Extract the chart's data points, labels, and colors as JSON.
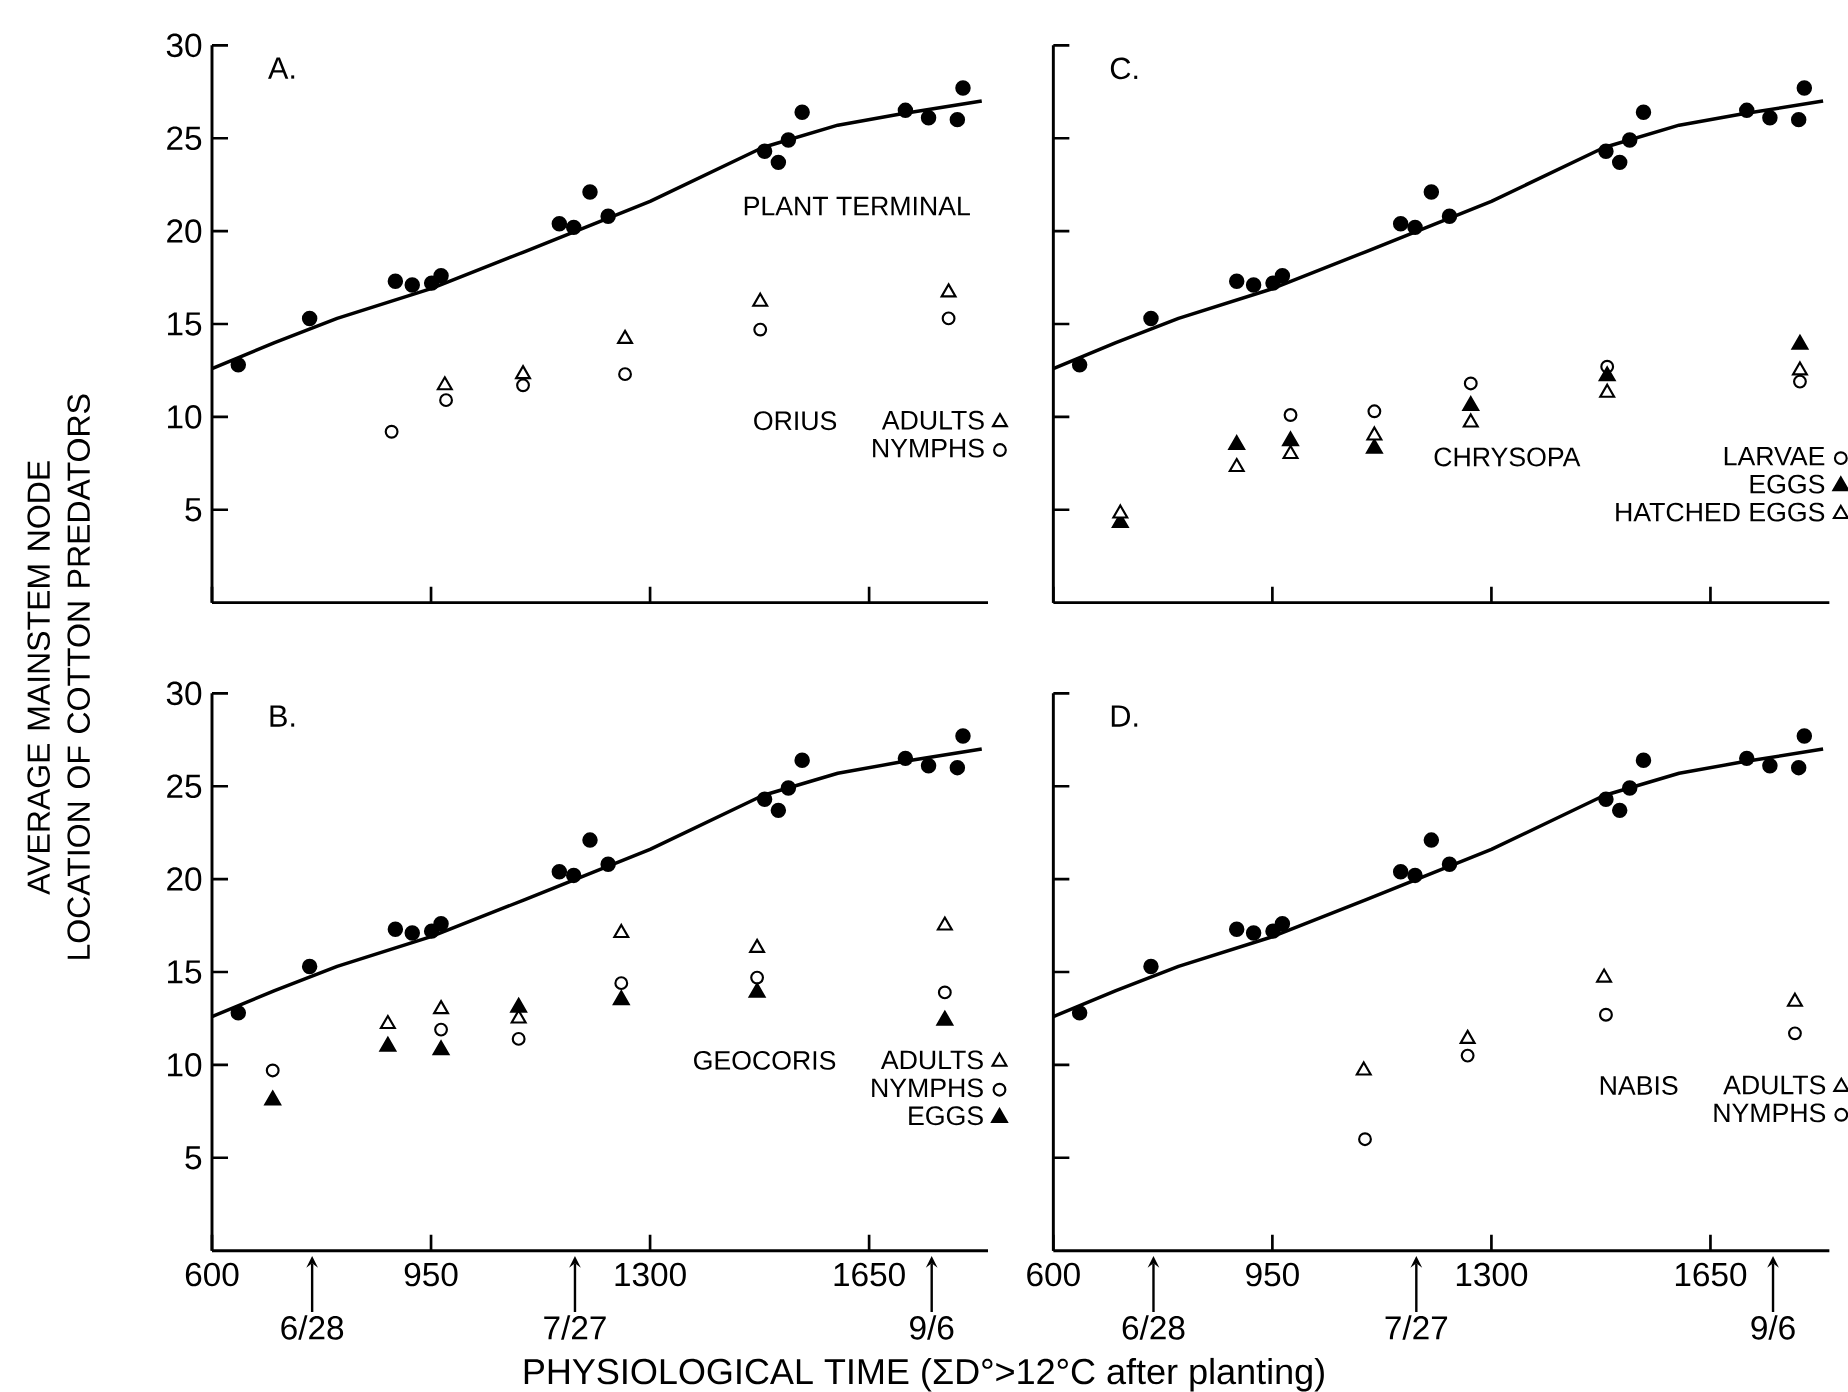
{
  "chart_data": [
    {
      "type": "scatter",
      "title": "A.",
      "ylabel": "AVERAGE MAINSTEM NODE LOCATION OF COTTON PREDATORS",
      "xlim": [
        600,
        1840
      ],
      "ylim": [
        0,
        30
      ],
      "xticks": [
        600,
        950,
        1300,
        1650
      ],
      "yticks": [
        5,
        10,
        15,
        20,
        25,
        30
      ],
      "tick_labels": "y",
      "legend": "bottom right",
      "legend_title": "ORIUS",
      "series": [
        {
          "name": "PLANT TERMINAL",
          "type": "line",
          "color": "#000000",
          "x": [
            600,
            700,
            800,
            950,
            1100,
            1300,
            1480,
            1600,
            1700,
            1830
          ],
          "values": [
            12.6,
            14.0,
            15.3,
            16.9,
            18.9,
            21.6,
            24.5,
            25.7,
            26.3,
            27.0
          ]
        },
        {
          "marker": "circle",
          "color": "#000000",
          "x": [
            642,
            756,
            893,
            920,
            951,
            966,
            1155,
            1178,
            1204,
            1233,
            1483,
            1505,
            1521,
            1543,
            1708,
            1745,
            1791,
            1800
          ],
          "values": [
            12.8,
            15.3,
            17.3,
            17.1,
            17.2,
            17.6,
            20.4,
            20.2,
            22.1,
            20.8,
            24.3,
            23.7,
            24.9,
            26.4,
            26.5,
            26.1,
            26.0,
            27.7
          ]
        },
        {
          "name": "ADULTS",
          "marker": "triangle",
          "color": "#000000",
          "x": [
            972,
            1097,
            1260,
            1476,
            1777
          ],
          "values": [
            11.7,
            12.3,
            14.2,
            16.2,
            16.7
          ]
        },
        {
          "name": "NYMPHS",
          "marker": "circle",
          "color": "#000000",
          "x": [
            887,
            974,
            1097,
            1260,
            1476,
            1777
          ],
          "values": [
            9.2,
            10.9,
            11.7,
            12.3,
            14.7,
            15.3
          ]
        }
      ]
    },
    {
      "type": "scatter",
      "title": "B.",
      "xlabel": "PHYSIOLOGICAL TIME (ΣD°>12°C after planting)",
      "xlim": [
        600,
        1840
      ],
      "ylim": [
        0,
        30
      ],
      "xticks": [
        600,
        950,
        1300,
        1650
      ],
      "yticks": [
        5,
        10,
        15,
        20,
        25,
        30
      ],
      "legend": "bottom right",
      "legend_title": "GEOCORIS",
      "annotations": [
        {
          "text": "6/28",
          "x": 760
        },
        {
          "text": "7/27",
          "x": 1180
        },
        {
          "text": "9/6",
          "x": 1750
        }
      ],
      "series": [
        {
          "type": "line",
          "color": "#000000",
          "x": [
            600,
            700,
            800,
            950,
            1100,
            1300,
            1480,
            1600,
            1700,
            1830
          ],
          "values": [
            12.6,
            14.0,
            15.3,
            16.9,
            18.9,
            21.6,
            24.5,
            25.7,
            26.3,
            27.0
          ]
        },
        {
          "marker": "circle",
          "color": "#000000",
          "x": [
            642,
            756,
            893,
            920,
            951,
            966,
            1155,
            1178,
            1204,
            1233,
            1483,
            1505,
            1521,
            1543,
            1708,
            1745,
            1791,
            1800
          ],
          "values": [
            12.8,
            15.3,
            17.3,
            17.1,
            17.2,
            17.6,
            20.4,
            20.2,
            22.1,
            20.8,
            24.3,
            23.7,
            24.9,
            26.4,
            26.5,
            26.1,
            26.0,
            27.7
          ]
        },
        {
          "name": "ADULTS",
          "marker": "triangle",
          "color": "#000000",
          "x": [
            881,
            966,
            1090,
            1254,
            1471,
            1771
          ],
          "values": [
            12.2,
            13.0,
            12.5,
            17.1,
            16.3,
            17.5
          ]
        },
        {
          "name": "NYMPHS",
          "marker": "circle",
          "color": "#000000",
          "x": [
            697,
            966,
            1090,
            1254,
            1471,
            1771
          ],
          "values": [
            9.7,
            11.9,
            11.4,
            14.4,
            14.7,
            13.9
          ]
        },
        {
          "name": "EGGS",
          "marker": "triangle",
          "color": "#000000",
          "x": [
            697,
            881,
            966,
            1090,
            1254,
            1471,
            1771
          ],
          "values": [
            8.1,
            11.0,
            10.8,
            13.1,
            13.5,
            13.9,
            12.4
          ]
        }
      ]
    },
    {
      "type": "scatter",
      "title": "C.",
      "xlim": [
        600,
        1840
      ],
      "ylim": [
        0,
        30
      ],
      "xticks": [
        600,
        950,
        1300,
        1650
      ],
      "yticks": [
        5,
        10,
        15,
        20,
        25,
        30
      ],
      "tick_labels": false,
      "legend": "bottom right",
      "legend_title": "CHRYSOPA",
      "series": [
        {
          "type": "line",
          "color": "#000000",
          "x": [
            600,
            700,
            800,
            950,
            1100,
            1300,
            1480,
            1600,
            1700,
            1830
          ],
          "values": [
            12.6,
            14.0,
            15.3,
            16.9,
            18.9,
            21.6,
            24.5,
            25.7,
            26.3,
            27.0
          ]
        },
        {
          "marker": "circle",
          "color": "#000000",
          "x": [
            642,
            756,
            893,
            920,
            951,
            966,
            1155,
            1178,
            1204,
            1233,
            1483,
            1505,
            1521,
            1543,
            1708,
            1745,
            1791,
            1800
          ],
          "values": [
            12.8,
            15.3,
            17.3,
            17.1,
            17.2,
            17.6,
            20.4,
            20.2,
            22.1,
            20.8,
            24.3,
            23.7,
            24.9,
            26.4,
            26.5,
            26.1,
            26.0,
            27.7
          ]
        },
        {
          "name": "LARVAE",
          "marker": "circle",
          "color": "#000000",
          "x": [
            979,
            1113,
            1267,
            1485,
            1793
          ],
          "values": [
            10.1,
            10.3,
            11.8,
            12.7,
            11.9
          ]
        },
        {
          "name": "EGGS",
          "marker": "triangle",
          "color": "#000000",
          "x": [
            707,
            893,
            979,
            1113,
            1267,
            1485,
            1793
          ],
          "values": [
            4.3,
            8.5,
            8.7,
            8.3,
            10.6,
            12.2,
            13.9
          ]
        },
        {
          "name": "HATCHED EGGS",
          "marker": "triangle",
          "color": "#000000",
          "x": [
            707,
            893,
            979,
            1113,
            1267,
            1485,
            1793
          ],
          "values": [
            4.8,
            7.3,
            8.0,
            9.0,
            9.7,
            11.3,
            12.5
          ]
        }
      ]
    },
    {
      "type": "scatter",
      "title": "D.",
      "xlim": [
        600,
        1840
      ],
      "ylim": [
        0,
        30
      ],
      "xticks": [
        600,
        950,
        1300,
        1650
      ],
      "yticks": [
        5,
        10,
        15,
        20,
        25,
        30
      ],
      "tick_labels": "x",
      "legend": "bottom right",
      "legend_title": "NABIS",
      "annotations": [
        {
          "text": "6/28",
          "x": 760
        },
        {
          "text": "7/27",
          "x": 1180
        },
        {
          "text": "9/6",
          "x": 1750
        }
      ],
      "series": [
        {
          "type": "line",
          "color": "#000000",
          "x": [
            600,
            700,
            800,
            950,
            1100,
            1300,
            1480,
            1600,
            1700,
            1830
          ],
          "values": [
            12.6,
            14.0,
            15.3,
            16.9,
            18.9,
            21.6,
            24.5,
            25.7,
            26.3,
            27.0
          ]
        },
        {
          "marker": "circle",
          "color": "#000000",
          "x": [
            642,
            756,
            893,
            920,
            951,
            966,
            1155,
            1178,
            1204,
            1233,
            1483,
            1505,
            1521,
            1543,
            1708,
            1745,
            1791,
            1800
          ],
          "values": [
            12.8,
            15.3,
            17.3,
            17.1,
            17.2,
            17.6,
            20.4,
            20.2,
            22.1,
            20.8,
            24.3,
            23.7,
            24.9,
            26.4,
            26.5,
            26.1,
            26.0,
            27.7
          ]
        },
        {
          "name": "ADULTS",
          "marker": "triangle",
          "color": "#000000",
          "x": [
            1096,
            1262,
            1480,
            1785
          ],
          "values": [
            9.7,
            11.4,
            14.7,
            13.4
          ]
        },
        {
          "name": "NYMPHS",
          "marker": "circle",
          "color": "#000000",
          "x": [
            1098,
            1262,
            1483,
            1785
          ],
          "values": [
            6.0,
            10.5,
            12.7,
            11.7
          ]
        }
      ]
    }
  ]
}
